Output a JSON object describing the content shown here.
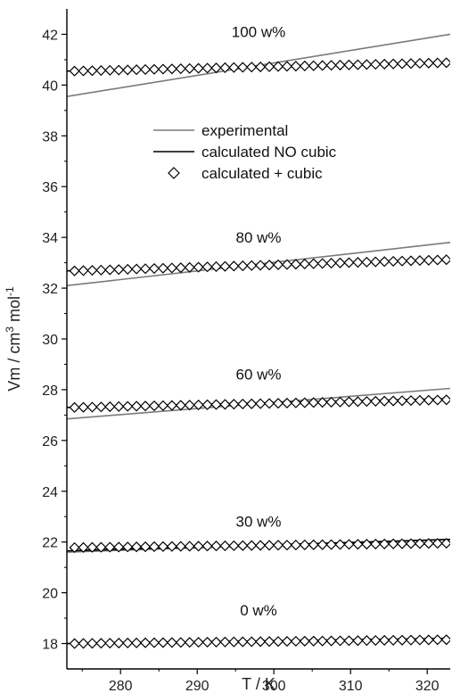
{
  "chart_data": {
    "type": "line",
    "title": "",
    "xlabel": "T / K",
    "ylabel_parts": {
      "base": "Vm / cm",
      "exp1": "3",
      "mid": " mol",
      "exp2": "-1"
    },
    "xlim": [
      273,
      323
    ],
    "ylim": [
      17,
      43
    ],
    "xticks": [
      280,
      290,
      300,
      310,
      320
    ],
    "yticks": [
      18,
      20,
      22,
      24,
      26,
      28,
      30,
      32,
      34,
      36,
      38,
      40,
      42
    ],
    "legend": {
      "placement": "center-left",
      "entries": [
        "experimental",
        "calculated NO cubic",
        "calculated + cubic"
      ]
    },
    "colors": {
      "experimental": "#7a7a7a",
      "calc_no_cubic": "#000000",
      "calc_cubic_marker": "#000000"
    },
    "annotations": [
      {
        "text": "100 w%",
        "x": 298,
        "y": 41.9
      },
      {
        "text": "80 w%",
        "x": 298,
        "y": 33.8
      },
      {
        "text": "60 w%",
        "x": 298,
        "y": 28.4
      },
      {
        "text": "30 w%",
        "x": 298,
        "y": 22.6
      },
      {
        "text": "0 w%",
        "x": 298,
        "y": 19.1
      }
    ],
    "groups": [
      {
        "label": "100 w%",
        "experimental": {
          "x": [
            273,
            323
          ],
          "y": [
            39.55,
            42.0
          ]
        },
        "calc_no_cubic": {
          "x": [
            273,
            323
          ],
          "y": [
            40.55,
            40.88
          ]
        },
        "calc_cubic": {
          "x_start": 274,
          "x_end": 322.5,
          "count": 43,
          "y_start": 40.55,
          "y_end": 40.88
        }
      },
      {
        "label": "80 w%",
        "experimental": {
          "x": [
            273,
            323
          ],
          "y": [
            32.1,
            33.8
          ]
        },
        "calc_no_cubic": {
          "x": [
            273,
            323
          ],
          "y": [
            32.68,
            33.12
          ]
        },
        "calc_cubic": {
          "x_start": 274,
          "x_end": 322.5,
          "count": 43,
          "y_start": 32.68,
          "y_end": 33.12
        }
      },
      {
        "label": "60 w%",
        "experimental": {
          "x": [
            273,
            323
          ],
          "y": [
            26.85,
            28.05
          ]
        },
        "calc_no_cubic": {
          "x": [
            273,
            323
          ],
          "y": [
            27.3,
            27.65
          ]
        },
        "calc_cubic": {
          "x_start": 274,
          "x_end": 322.5,
          "count": 43,
          "y_start": 27.3,
          "y_end": 27.6
        }
      },
      {
        "label": "30 w%",
        "experimental": {
          "x": [
            273,
            323
          ],
          "y": [
            21.6,
            22.1
          ]
        },
        "calc_no_cubic": {
          "x": [
            273,
            323
          ],
          "y": [
            21.65,
            22.1
          ]
        },
        "calc_cubic": {
          "x_start": 274,
          "x_end": 322.5,
          "count": 43,
          "y_start": 21.78,
          "y_end": 21.95
        }
      },
      {
        "label": "0 w%",
        "experimental": {
          "x": [
            273,
            323
          ],
          "y": [
            18.0,
            18.2
          ]
        },
        "calc_no_cubic": {
          "x": [
            273,
            323
          ],
          "y": [
            18.0,
            18.2
          ]
        },
        "calc_cubic": {
          "x_start": 274,
          "x_end": 322.5,
          "count": 43,
          "y_start": 18.0,
          "y_end": 18.15
        }
      }
    ]
  }
}
